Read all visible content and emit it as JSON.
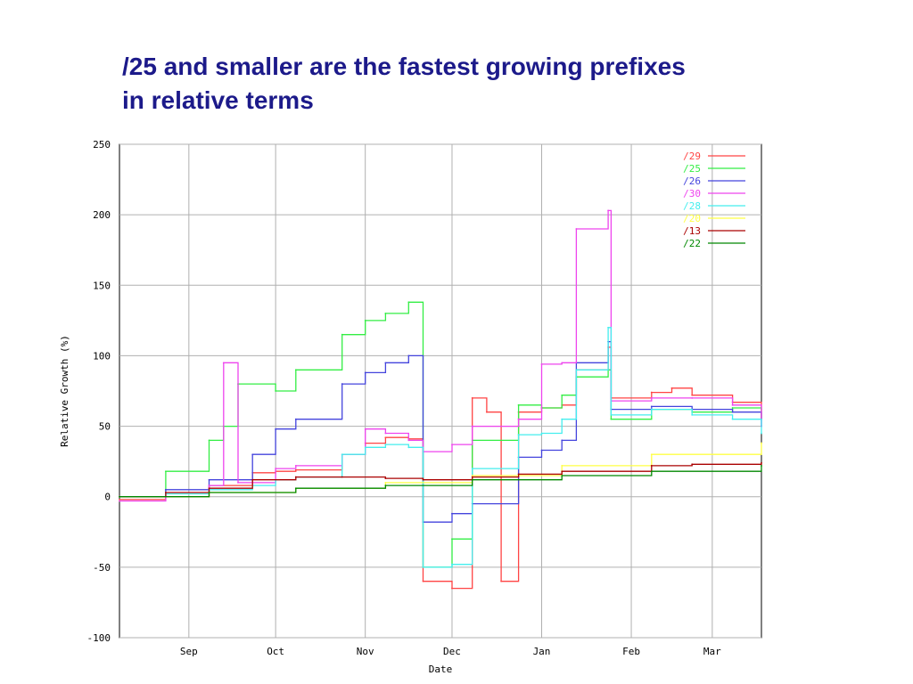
{
  "slide": {
    "title_line1": "/25 and smaller are the fastest growing prefixes",
    "title_line2": "in relative terms"
  },
  "chart_data": {
    "type": "line",
    "title": "",
    "xlabel": "Date",
    "ylabel": "Relative Growth (%)",
    "ylim": [
      -100,
      250
    ],
    "yticks": [
      -100,
      -50,
      0,
      50,
      100,
      150,
      200,
      250
    ],
    "xlim": [
      "2005-08-15",
      "2006-03-25"
    ],
    "xticks": [
      {
        "label": "Sep",
        "date": "2005-09-08"
      },
      {
        "label": "Oct",
        "date": "2005-10-08"
      },
      {
        "label": "Nov",
        "date": "2005-11-08"
      },
      {
        "label": "Dec",
        "date": "2005-12-08"
      },
      {
        "label": "Jan",
        "date": "2006-01-08"
      },
      {
        "label": "Feb",
        "date": "2006-02-08"
      },
      {
        "label": "Mar",
        "date": "2006-03-08"
      }
    ],
    "grid": true,
    "legend_position": "top-right",
    "series": [
      {
        "name": "/29",
        "color": "#ff4444",
        "points": [
          [
            "2005-08-15",
            -2
          ],
          [
            "2005-08-31",
            0
          ],
          [
            "2005-09-15",
            8
          ],
          [
            "2005-09-30",
            17
          ],
          [
            "2005-10-08",
            18
          ],
          [
            "2005-10-15",
            19
          ],
          [
            "2005-10-31",
            30
          ],
          [
            "2005-11-08",
            38
          ],
          [
            "2005-11-15",
            42
          ],
          [
            "2005-11-23",
            41
          ],
          [
            "2005-11-28",
            -60
          ],
          [
            "2005-12-08",
            -65
          ],
          [
            "2005-12-15",
            70
          ],
          [
            "2005-12-20",
            60
          ],
          [
            "2005-12-25",
            -60
          ],
          [
            "2005-12-31",
            60
          ],
          [
            "2006-01-08",
            63
          ],
          [
            "2006-01-15",
            65
          ],
          [
            "2006-01-20",
            90
          ],
          [
            "2006-01-31",
            106
          ],
          [
            "2006-02-01",
            70
          ],
          [
            "2006-02-15",
            74
          ],
          [
            "2006-02-22",
            77
          ],
          [
            "2006-03-01",
            72
          ],
          [
            "2006-03-15",
            67
          ],
          [
            "2006-03-25",
            55
          ]
        ]
      },
      {
        "name": "/25",
        "color": "#33ee44",
        "points": [
          [
            "2005-08-15",
            0
          ],
          [
            "2005-08-31",
            18
          ],
          [
            "2005-09-15",
            40
          ],
          [
            "2005-09-20",
            50
          ],
          [
            "2005-09-25",
            80
          ],
          [
            "2005-10-08",
            75
          ],
          [
            "2005-10-15",
            90
          ],
          [
            "2005-10-31",
            115
          ],
          [
            "2005-11-08",
            125
          ],
          [
            "2005-11-15",
            130
          ],
          [
            "2005-11-23",
            138
          ],
          [
            "2005-11-28",
            -50
          ],
          [
            "2005-12-08",
            -30
          ],
          [
            "2005-12-15",
            40
          ],
          [
            "2005-12-31",
            65
          ],
          [
            "2006-01-08",
            63
          ],
          [
            "2006-01-15",
            72
          ],
          [
            "2006-01-20",
            85
          ],
          [
            "2006-01-31",
            90
          ],
          [
            "2006-02-01",
            55
          ],
          [
            "2006-02-15",
            62
          ],
          [
            "2006-03-01",
            60
          ],
          [
            "2006-03-15",
            63
          ],
          [
            "2006-03-25",
            55
          ]
        ]
      },
      {
        "name": "/26",
        "color": "#4444dd",
        "points": [
          [
            "2005-08-15",
            0
          ],
          [
            "2005-08-31",
            5
          ],
          [
            "2005-09-15",
            12
          ],
          [
            "2005-09-30",
            30
          ],
          [
            "2005-10-08",
            48
          ],
          [
            "2005-10-15",
            55
          ],
          [
            "2005-10-31",
            80
          ],
          [
            "2005-11-08",
            88
          ],
          [
            "2005-11-15",
            95
          ],
          [
            "2005-11-23",
            100
          ],
          [
            "2005-11-28",
            -18
          ],
          [
            "2005-12-08",
            -12
          ],
          [
            "2005-12-15",
            -5
          ],
          [
            "2005-12-31",
            28
          ],
          [
            "2006-01-08",
            33
          ],
          [
            "2006-01-15",
            40
          ],
          [
            "2006-01-20",
            95
          ],
          [
            "2006-01-31",
            110
          ],
          [
            "2006-02-01",
            62
          ],
          [
            "2006-02-15",
            64
          ],
          [
            "2006-03-01",
            62
          ],
          [
            "2006-03-15",
            60
          ],
          [
            "2006-03-25",
            50
          ]
        ]
      },
      {
        "name": "/30",
        "color": "#ee44ee",
        "points": [
          [
            "2005-08-15",
            -3
          ],
          [
            "2005-08-31",
            0
          ],
          [
            "2005-09-15",
            8
          ],
          [
            "2005-09-20",
            95
          ],
          [
            "2005-09-25",
            10
          ],
          [
            "2005-10-08",
            20
          ],
          [
            "2005-10-15",
            22
          ],
          [
            "2005-10-31",
            30
          ],
          [
            "2005-11-08",
            48
          ],
          [
            "2005-11-15",
            45
          ],
          [
            "2005-11-23",
            40
          ],
          [
            "2005-11-28",
            32
          ],
          [
            "2005-12-08",
            37
          ],
          [
            "2005-12-15",
            50
          ],
          [
            "2005-12-31",
            55
          ],
          [
            "2006-01-08",
            94
          ],
          [
            "2006-01-15",
            95
          ],
          [
            "2006-01-20",
            190
          ],
          [
            "2006-01-31",
            203
          ],
          [
            "2006-02-01",
            68
          ],
          [
            "2006-02-15",
            70
          ],
          [
            "2006-03-01",
            70
          ],
          [
            "2006-03-15",
            65
          ],
          [
            "2006-03-25",
            50
          ]
        ]
      },
      {
        "name": "/28",
        "color": "#44eeee",
        "points": [
          [
            "2005-08-15",
            0
          ],
          [
            "2005-08-31",
            2
          ],
          [
            "2005-09-15",
            5
          ],
          [
            "2005-09-30",
            8
          ],
          [
            "2005-10-08",
            12
          ],
          [
            "2005-10-15",
            14
          ],
          [
            "2005-10-31",
            30
          ],
          [
            "2005-11-08",
            35
          ],
          [
            "2005-11-15",
            37
          ],
          [
            "2005-11-23",
            35
          ],
          [
            "2005-11-28",
            -50
          ],
          [
            "2005-12-08",
            -48
          ],
          [
            "2005-12-15",
            20
          ],
          [
            "2005-12-31",
            44
          ],
          [
            "2006-01-08",
            45
          ],
          [
            "2006-01-15",
            55
          ],
          [
            "2006-01-20",
            90
          ],
          [
            "2006-01-31",
            120
          ],
          [
            "2006-02-01",
            58
          ],
          [
            "2006-02-15",
            62
          ],
          [
            "2006-03-01",
            58
          ],
          [
            "2006-03-15",
            55
          ],
          [
            "2006-03-25",
            45
          ]
        ]
      },
      {
        "name": "/20",
        "color": "#ffff44",
        "points": [
          [
            "2005-08-15",
            0
          ],
          [
            "2005-09-15",
            3
          ],
          [
            "2005-10-15",
            6
          ],
          [
            "2005-11-15",
            10
          ],
          [
            "2005-12-15",
            15
          ],
          [
            "2006-01-15",
            22
          ],
          [
            "2006-02-15",
            30
          ],
          [
            "2006-03-25",
            38
          ]
        ]
      },
      {
        "name": "/13",
        "color": "#aa0000",
        "points": [
          [
            "2005-08-15",
            0
          ],
          [
            "2005-08-31",
            3
          ],
          [
            "2005-09-15",
            6
          ],
          [
            "2005-09-30",
            12
          ],
          [
            "2005-10-15",
            14
          ],
          [
            "2005-10-31",
            14
          ],
          [
            "2005-11-15",
            13
          ],
          [
            "2005-11-28",
            12
          ],
          [
            "2005-12-15",
            14
          ],
          [
            "2005-12-31",
            16
          ],
          [
            "2006-01-15",
            18
          ],
          [
            "2006-02-15",
            22
          ],
          [
            "2006-03-01",
            23
          ],
          [
            "2006-03-25",
            24
          ]
        ]
      },
      {
        "name": "/22",
        "color": "#008800",
        "points": [
          [
            "2005-08-15",
            0
          ],
          [
            "2005-09-15",
            3
          ],
          [
            "2005-10-15",
            6
          ],
          [
            "2005-11-15",
            8
          ],
          [
            "2005-12-15",
            12
          ],
          [
            "2006-01-15",
            15
          ],
          [
            "2006-02-15",
            18
          ],
          [
            "2006-03-25",
            22
          ]
        ]
      }
    ]
  }
}
